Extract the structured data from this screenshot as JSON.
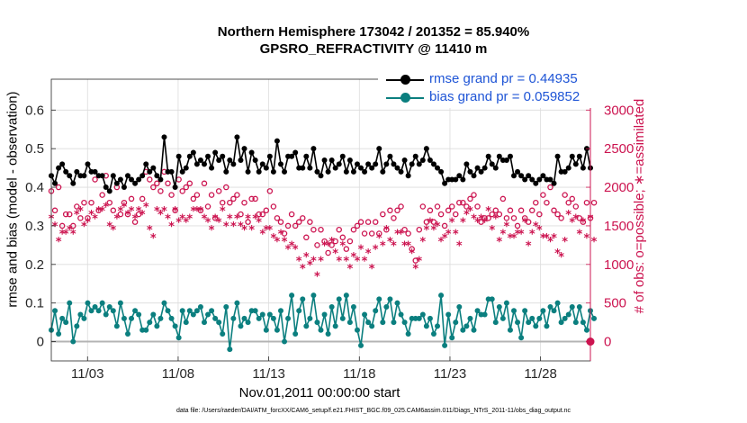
{
  "title_line1": "Northern Hemisphere 173042 / 201352 = 85.940%",
  "title_line2": "GPSRO_REFRACTIVITY @ 11410 m",
  "xlabel": "Nov.01,2011 00:00:00 start",
  "ylabel_left": "rmse and bias (model - observation)",
  "ylabel_right": "# of obs: o=possible; ∗=assimilated",
  "footnote": "data file: /Users/raeder/DAI/ATM_forcXX/CAM6_setup/f.e21.FHIST_BGC.f09_025.CAM6assim.011/Diags_NTrS_2011-11/obs_diag_output.nc",
  "legend": {
    "rmse_label": "rmse grand pr = 0.44935",
    "bias_label": "bias grand pr = 0.059852"
  },
  "colors": {
    "rmse": "#000000",
    "bias": "#0b7f7f",
    "obs": "#cc1450",
    "zero_line": "#b4b4b4",
    "grid": "#dcdcdc"
  },
  "chart_data": {
    "type": "line",
    "x_start": 1,
    "x_end": 30.75,
    "xticks": [
      3,
      8,
      13,
      18,
      23,
      28
    ],
    "xtick_labels": [
      "11/03",
      "11/08",
      "11/13",
      "11/18",
      "11/23",
      "11/28"
    ],
    "ylim_left": [
      -0.05,
      0.68
    ],
    "yticks_left": [
      0,
      0.1,
      0.2,
      0.3,
      0.4,
      0.5,
      0.6
    ],
    "ytick_labels_left": [
      "0",
      "0.1",
      "0.2",
      "0.3",
      "0.4",
      "0.5",
      "0.6"
    ],
    "ylim_right": [
      -250,
      3400
    ],
    "yticks_right": [
      0,
      500,
      1000,
      1500,
      2000,
      2500,
      3000
    ],
    "ytick_labels_right": [
      "0",
      "500",
      "1000",
      "1500",
      "2000",
      "2500",
      "3000"
    ],
    "series_rmse": [
      0.43,
      0.41,
      0.45,
      0.46,
      0.44,
      0.43,
      0.41,
      0.44,
      0.43,
      0.43,
      0.46,
      0.44,
      0.44,
      0.43,
      0.43,
      0.4,
      0.39,
      0.43,
      0.41,
      0.42,
      0.4,
      0.43,
      0.42,
      0.41,
      0.42,
      0.43,
      0.46,
      0.44,
      0.45,
      0.43,
      0.42,
      0.53,
      0.44,
      0.44,
      0.4,
      0.48,
      0.44,
      0.45,
      0.48,
      0.49,
      0.46,
      0.47,
      0.46,
      0.48,
      0.45,
      0.49,
      0.47,
      0.48,
      0.44,
      0.47,
      0.46,
      0.53,
      0.47,
      0.5,
      0.44,
      0.49,
      0.47,
      0.44,
      0.46,
      0.45,
      0.48,
      0.44,
      0.52,
      0.46,
      0.44,
      0.48,
      0.48,
      0.49,
      0.45,
      0.45,
      0.48,
      0.45,
      0.5,
      0.44,
      0.43,
      0.47,
      0.44,
      0.47,
      0.45,
      0.46,
      0.48,
      0.44,
      0.47,
      0.44,
      0.46,
      0.45,
      0.44,
      0.46,
      0.45,
      0.46,
      0.5,
      0.44,
      0.46,
      0.48,
      0.46,
      0.45,
      0.44,
      0.47,
      0.43,
      0.46,
      0.48,
      0.46,
      0.47,
      0.5,
      0.47,
      0.46,
      0.45,
      0.44,
      0.41,
      0.42,
      0.42,
      0.42,
      0.43,
      0.42,
      0.46,
      0.44,
      0.43,
      0.45,
      0.44,
      0.45,
      0.48,
      0.46,
      0.45,
      0.48,
      0.47,
      0.47,
      0.48,
      0.43,
      0.44,
      0.43,
      0.42,
      0.43,
      0.42,
      0.41,
      0.42,
      0.43,
      0.42,
      0.42,
      0.41,
      0.48,
      0.44,
      0.44,
      0.45,
      0.48,
      0.46,
      0.48,
      0.45,
      0.5,
      0.45
    ],
    "series_bias": [
      0.03,
      0.08,
      0.02,
      0.06,
      0.05,
      0.1,
      0.0,
      0.04,
      0.07,
      0.06,
      0.1,
      0.08,
      0.09,
      0.08,
      0.1,
      0.07,
      0.09,
      0.08,
      0.04,
      0.1,
      0.06,
      0.02,
      0.06,
      0.08,
      0.07,
      0.03,
      0.03,
      0.05,
      0.07,
      0.04,
      0.06,
      0.1,
      0.08,
      0.06,
      0.04,
      0.01,
      0.08,
      0.05,
      0.08,
      0.07,
      0.08,
      0.09,
      0.05,
      0.07,
      0.08,
      0.06,
      0.05,
      0.02,
      0.09,
      -0.02,
      0.06,
      0.1,
      0.04,
      0.06,
      0.05,
      0.08,
      0.08,
      0.06,
      0.07,
      0.03,
      0.07,
      0.06,
      0.03,
      0.08,
      0.0,
      0.06,
      0.12,
      0.02,
      0.08,
      0.11,
      0.04,
      0.06,
      0.12,
      0.05,
      0.03,
      0.07,
      0.02,
      0.09,
      0.04,
      0.11,
      0.06,
      0.12,
      0.05,
      0.09,
      0.03,
      -0.01,
      0.07,
      0.05,
      0.04,
      0.08,
      0.11,
      0.05,
      0.09,
      0.11,
      0.05,
      0.1,
      0.07,
      0.05,
      0.02,
      0.06,
      0.06,
      0.06,
      0.07,
      0.04,
      0.06,
      0.02,
      0.04,
      0.12,
      -0.01,
      0.07,
      0.01,
      0.05,
      0.09,
      0.03,
      0.04,
      0.06,
      0.03,
      0.08,
      0.07,
      0.07,
      0.11,
      0.11,
      0.05,
      0.09,
      0.06,
      0.1,
      0.03,
      0.08,
      0.05,
      0.01,
      0.08,
      0.05,
      0.06,
      0.04,
      0.06,
      0.08,
      0.04,
      0.09,
      0.08,
      0.1,
      0.05,
      0.06,
      0.07,
      0.09,
      0.05,
      0.09,
      0.05,
      0.03,
      0.08,
      0.06
    ],
    "series_possible": [
      1950,
      1700,
      2000,
      1500,
      1650,
      1650,
      1500,
      1750,
      1600,
      1800,
      1600,
      1800,
      2100,
      1700,
      1900,
      2150,
      1800,
      1700,
      2000,
      1650,
      1800,
      1650,
      1850,
      1550,
      1650,
      1850,
      2200,
      2100,
      2000,
      2050,
      1950,
      2200,
      2050,
      1900,
      1700,
      2100,
      1950,
      2000,
      2050,
      1850,
      1900,
      1700,
      2050,
      1750,
      1900,
      1600,
      1950,
      1800,
      2000,
      1800,
      1850,
      1900,
      1650,
      1800,
      1550,
      1850,
      1850,
      1650,
      1650,
      1700,
      1950,
      1750,
      1600,
      1550,
      1400,
      1500,
      1650,
      1500,
      1550,
      1600,
      1350,
      1550,
      1450,
      1250,
      1450,
      1300,
      1150,
      1250,
      1300,
      1450,
      1350,
      1200,
      1300,
      1450,
      1500,
      1550,
      1400,
      1550,
      1400,
      1550,
      1400,
      1650,
      1450,
      1700,
      1600,
      1700,
      1750,
      1450,
      1400,
      1200,
      1050,
      1450,
      1750,
      1550,
      1700,
      1550,
      1750,
      1650,
      1500,
      1700,
      1750,
      1650,
      1800,
      1800,
      1750,
      1850,
      1900,
      1750,
      1550,
      1600,
      1600,
      1650,
      1700,
      1650,
      1850,
      1600,
      1700,
      1600,
      1500,
      1700,
      1600,
      1550,
      1700,
      1800,
      1650,
      1900,
      1800,
      2000,
      1700,
      1650,
      1600,
      1900,
      1800,
      1850,
      1750,
      1600,
      1550,
      1800,
      1600,
      1800
    ],
    "series_assimilated": [
      1600,
      1500,
      1300,
      1400,
      1400,
      1450,
      1400,
      1650,
      1700,
      1500,
      1550,
      1650,
      1600,
      1700,
      1700,
      1750,
      1500,
      1450,
      1600,
      1700,
      1750,
      1650,
      1700,
      1600,
      1700,
      1650,
      1750,
      1450,
      1350,
      1700,
      1650,
      1700,
      1600,
      1500,
      1700,
      1550,
      1600,
      1550,
      1600,
      1700,
      1700,
      1700,
      1600,
      1550,
      1450,
      1600,
      1550,
      1700,
      1500,
      1600,
      1500,
      1600,
      1500,
      1450,
      1600,
      1450,
      1600,
      1550,
      1400,
      1450,
      1450,
      1350,
      1300,
      1400,
      1300,
      1200,
      1250,
      1200,
      1050,
      950,
      1100,
      1000,
      1050,
      850,
      1050,
      1250,
      1250,
      1300,
      1150,
      1050,
      1250,
      1050,
      950,
      1100,
      1050,
      1200,
      1050,
      1150,
      950,
      1200,
      1350,
      1250,
      1450,
      1300,
      1250,
      1400,
      1400,
      1250,
      1250,
      1150,
      950,
      1050,
      1300,
      1450,
      1550,
      1450,
      1500,
      1300,
      1350,
      1400,
      1550,
      1400,
      1250,
      1550,
      1650,
      1700,
      1600,
      1550,
      1600,
      1550,
      1700,
      1450,
      1600,
      1300,
      1400,
      1500,
      1350,
      1350,
      1400,
      1400,
      1550,
      1250,
      1400,
      1500,
      1450,
      1350,
      1350,
      1300,
      1350,
      1150,
      1100,
      1300,
      1650,
      1550,
      1600,
      1400,
      1550,
      1350,
      1600,
      1300
    ]
  }
}
